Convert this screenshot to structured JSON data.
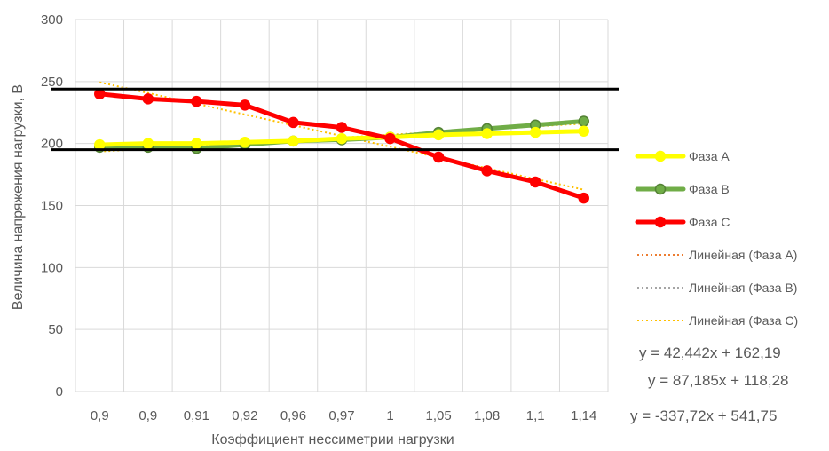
{
  "chart_data": {
    "type": "line",
    "title": "",
    "xlabel": "Коэффициент нессиметрии нагрузки",
    "ylabel": "Величина напряжения нагрузки, В",
    "categories": [
      "0,9",
      "0,9",
      "0,91",
      "0,92",
      "0,96",
      "0,97",
      "1",
      "1,05",
      "1,08",
      "1,1",
      "1,14"
    ],
    "ylim": [
      0,
      300
    ],
    "yticks": [
      0,
      50,
      100,
      150,
      200,
      250,
      300
    ],
    "grid": true,
    "legend_position": "right",
    "series": [
      {
        "name": "Фаза А",
        "color": "#ffff00",
        "marker_color": "#ffff00",
        "values": [
          199,
          200,
          200,
          201,
          202,
          204,
          205,
          207,
          208,
          209,
          210
        ]
      },
      {
        "name": "Фаза В",
        "color": "#70ad47",
        "marker_color": "#548235",
        "values": [
          197,
          197,
          196,
          199,
          202,
          203,
          205,
          209,
          212,
          215,
          218
        ]
      },
      {
        "name": "Фаза С",
        "color": "#ff0000",
        "marker_color": "#ff0000",
        "values": [
          240,
          236,
          234,
          231,
          217,
          213,
          204,
          189,
          178,
          169,
          156
        ]
      }
    ],
    "trendlines": [
      {
        "name": "Линейная (Фаза А)",
        "color": "#ed7d31"
      },
      {
        "name": "Линейная (Фаза В)",
        "color": "#a5a5a5"
      },
      {
        "name": "Линейная (Фаза С)",
        "color": "#ffc000"
      }
    ],
    "reference_lines": [
      244,
      195
    ],
    "equations": [
      "y = 42,442x + 162,19",
      "y = 87,185x + 118,28",
      "y = -337,72x + 541,75"
    ]
  }
}
